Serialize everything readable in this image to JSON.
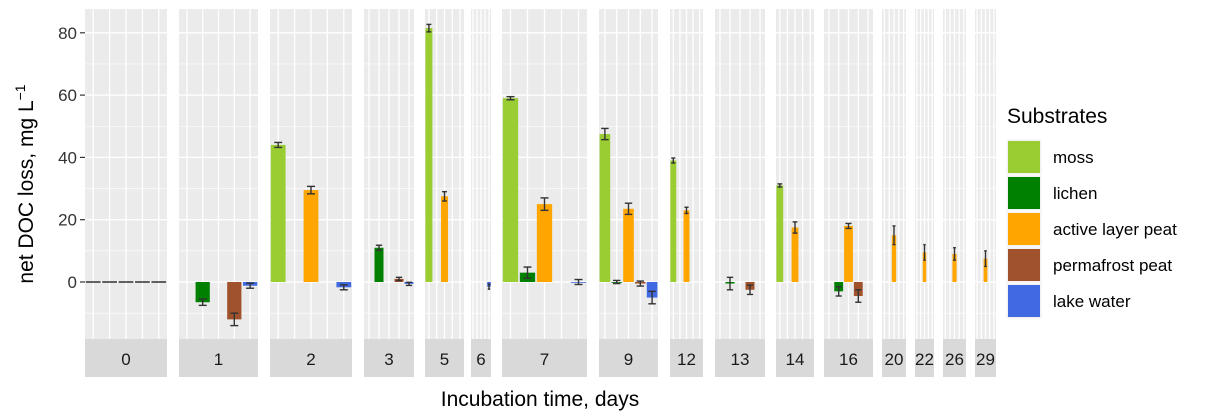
{
  "chart_data": {
    "type": "bar",
    "ylabel": "net DOC loss, mg L",
    "ylabel_superscript": "−1",
    "xlabel": "Incubation time, days",
    "y_ticks": [
      0,
      20,
      40,
      60,
      80
    ],
    "ylim": [
      -18,
      87
    ],
    "grid": true,
    "legend": {
      "title": "Substrates",
      "position": "right",
      "entries": [
        {
          "label": "moss",
          "color": "#9ACD32"
        },
        {
          "label": "lichen",
          "color": "#008000"
        },
        {
          "label": "active layer peat",
          "color": "#FFA500"
        },
        {
          "label": "permafrost peat",
          "color": "#A0522D"
        },
        {
          "label": "lake water",
          "color": "#4169E1"
        }
      ]
    },
    "panels": [
      {
        "label": "0",
        "values": [
          [
            0,
            0
          ],
          [
            0,
            0
          ],
          [
            0,
            0
          ],
          [
            0,
            0
          ],
          [
            0,
            0
          ]
        ]
      },
      {
        "label": "1",
        "values": [
          null,
          [
            -6.5,
            1
          ],
          null,
          [
            -12,
            2
          ],
          [
            -1.2,
            0.8
          ]
        ]
      },
      {
        "label": "2",
        "values": [
          [
            44,
            0.8
          ],
          null,
          [
            29.5,
            1.2
          ],
          null,
          [
            -1.7,
            0.8
          ]
        ]
      },
      {
        "label": "3",
        "values": [
          null,
          [
            11,
            0.8
          ],
          null,
          [
            1,
            0.5
          ],
          [
            -0.6,
            0.5
          ]
        ]
      },
      {
        "label": "5",
        "values": [
          [
            81.5,
            1.2
          ],
          null,
          [
            27.5,
            1.5
          ],
          null,
          null
        ]
      },
      {
        "label": "6",
        "values": [
          null,
          null,
          null,
          null,
          [
            -1.5,
            0.8
          ]
        ]
      },
      {
        "label": "7",
        "values": [
          [
            59,
            0.5
          ],
          [
            3,
            1.8
          ],
          [
            25,
            2
          ],
          null,
          [
            0,
            0.8
          ]
        ]
      },
      {
        "label": "9",
        "values": [
          [
            47.5,
            1.8
          ],
          [
            0,
            0.5
          ],
          [
            23.5,
            1.8
          ],
          [
            -0.5,
            0.8
          ],
          [
            -5,
            2
          ]
        ]
      },
      {
        "label": "12",
        "values": [
          [
            39,
            0.8
          ],
          null,
          [
            23,
            1
          ],
          null,
          null
        ]
      },
      {
        "label": "13",
        "values": [
          null,
          [
            -0.5,
            2
          ],
          null,
          [
            -2.5,
            1.5
          ],
          null
        ]
      },
      {
        "label": "14",
        "values": [
          [
            31,
            0.5
          ],
          null,
          [
            17.5,
            1.8
          ],
          null,
          null
        ]
      },
      {
        "label": "16",
        "values": [
          null,
          [
            -3,
            1.5
          ],
          [
            18,
            0.8
          ],
          [
            -4.5,
            2
          ],
          null
        ]
      },
      {
        "label": "20",
        "values": [
          null,
          null,
          [
            15,
            3
          ],
          null,
          null
        ]
      },
      {
        "label": "22",
        "values": [
          null,
          null,
          [
            9.5,
            2.5
          ],
          null,
          null
        ]
      },
      {
        "label": "26",
        "values": [
          null,
          null,
          [
            9,
            2
          ],
          null,
          null
        ]
      },
      {
        "label": "29",
        "values": [
          null,
          null,
          [
            7.5,
            2.5
          ],
          null,
          null
        ]
      }
    ]
  }
}
